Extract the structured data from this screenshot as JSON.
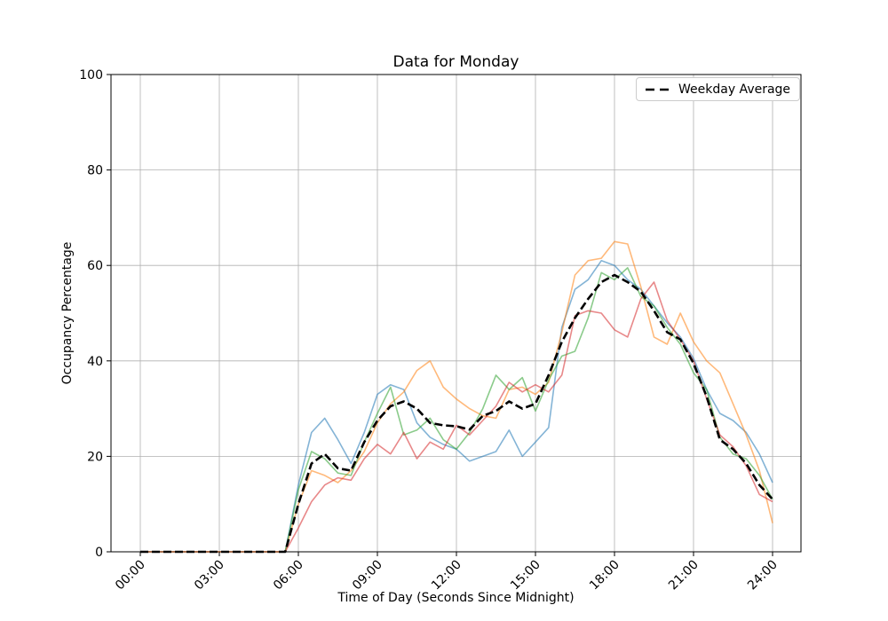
{
  "chart_data": {
    "type": "line",
    "title": "Data for Monday",
    "xlabel": "Time of Day (Seconds Since Midnight)",
    "ylabel": "Occupancy Percentage",
    "ylim": [
      0,
      100
    ],
    "y_ticks": [
      0,
      20,
      40,
      60,
      80,
      100
    ],
    "x_tick_hours": [
      0,
      3,
      6,
      9,
      12,
      15,
      18,
      21,
      24
    ],
    "x_tick_labels": [
      "00:00",
      "03:00",
      "06:00",
      "09:00",
      "12:00",
      "15:00",
      "18:00",
      "21:00",
      "24:00"
    ],
    "grid": true,
    "grid_color": "#b0b0b0",
    "legend": {
      "position": "top-right",
      "entries": [
        {
          "label": "Weekday Average",
          "style": "dashed",
          "color": "#000000"
        }
      ]
    },
    "x_hours": [
      0,
      0.5,
      1,
      1.5,
      2,
      2.5,
      3,
      3.5,
      4,
      4.5,
      5,
      5.5,
      6,
      6.5,
      7,
      7.5,
      8,
      8.5,
      9,
      9.5,
      10,
      10.5,
      11,
      11.5,
      12,
      12.5,
      13,
      13.5,
      14,
      14.5,
      15,
      15.5,
      16,
      16.5,
      17,
      17.5,
      18,
      18.5,
      19,
      19.5,
      20,
      20.5,
      21,
      21.5,
      22,
      22.5,
      23,
      23.5,
      24
    ],
    "series": [
      {
        "name": "series-1-blue",
        "color": "#1f77b4",
        "opacity": 0.55,
        "width": 1.6,
        "dashed": false,
        "values": [
          0,
          0,
          0,
          0,
          0,
          0,
          0,
          0,
          0,
          0,
          0,
          0,
          14,
          25,
          28,
          23.5,
          18.5,
          25,
          33,
          35,
          34,
          27,
          24,
          22.5,
          21.5,
          19,
          20,
          21,
          25.5,
          20,
          23,
          26,
          47,
          55,
          57,
          61,
          60,
          57,
          55,
          51.5,
          48,
          45,
          40.5,
          34,
          29,
          27.5,
          25,
          20.5,
          14.5
        ]
      },
      {
        "name": "series-2-orange",
        "color": "#ff7f0e",
        "opacity": 0.55,
        "width": 1.6,
        "dashed": false,
        "values": [
          0,
          0,
          0,
          0,
          0,
          0,
          0,
          0,
          0,
          0,
          0,
          0,
          10,
          17,
          16,
          14.5,
          17,
          21,
          27,
          31,
          33.5,
          38,
          40,
          34.5,
          32,
          30,
          28.5,
          28,
          34,
          34.5,
          33,
          35.5,
          46,
          58,
          61,
          61.5,
          65,
          64.5,
          55.5,
          45,
          43.5,
          50,
          44,
          40,
          37.5,
          31,
          24.5,
          17,
          6
        ]
      },
      {
        "name": "series-3-green",
        "color": "#2ca02c",
        "opacity": 0.55,
        "width": 1.6,
        "dashed": false,
        "values": [
          0,
          0,
          0,
          0,
          0,
          0,
          0,
          0,
          0,
          0,
          0,
          0,
          13,
          21,
          19.5,
          16.5,
          16,
          23,
          29,
          34.5,
          24.5,
          25.5,
          28,
          23.5,
          21.5,
          25,
          30,
          37,
          34,
          36.5,
          29.5,
          36,
          41,
          42,
          49,
          58.5,
          57,
          59.5,
          53.5,
          51.5,
          47,
          43.5,
          37.5,
          34,
          24,
          20.5,
          19.5,
          16,
          11
        ]
      },
      {
        "name": "series-4-red",
        "color": "#d62728",
        "opacity": 0.55,
        "width": 1.6,
        "dashed": false,
        "values": [
          0,
          0,
          0,
          0,
          0,
          0,
          0,
          0,
          0,
          0,
          0,
          0,
          5,
          10.5,
          14,
          15.5,
          15,
          19.5,
          22.5,
          20.5,
          25,
          19.5,
          23,
          21.5,
          26.5,
          24.5,
          27.5,
          30.5,
          35.5,
          33.5,
          35,
          33.5,
          37,
          49.5,
          50.5,
          50,
          46.5,
          45,
          53,
          56.5,
          48.5,
          44.5,
          40,
          32,
          24.5,
          22,
          18,
          12,
          10.5
        ]
      },
      {
        "name": "Weekday Average",
        "color": "#000000",
        "opacity": 1,
        "width": 2.6,
        "dashed": true,
        "values": [
          0,
          0,
          0,
          0,
          0,
          0,
          0,
          0,
          0,
          0,
          0,
          0,
          10,
          18.5,
          20.5,
          17.5,
          17,
          23,
          27.5,
          30.5,
          31.5,
          30,
          27,
          26.5,
          26.3,
          25.6,
          28.5,
          29.5,
          31.5,
          30,
          31,
          37,
          44,
          49,
          53,
          56.5,
          58,
          56.5,
          54.5,
          50.5,
          46,
          44.5,
          39.5,
          32.5,
          23.5,
          21.5,
          18.5,
          14,
          11
        ]
      }
    ]
  }
}
